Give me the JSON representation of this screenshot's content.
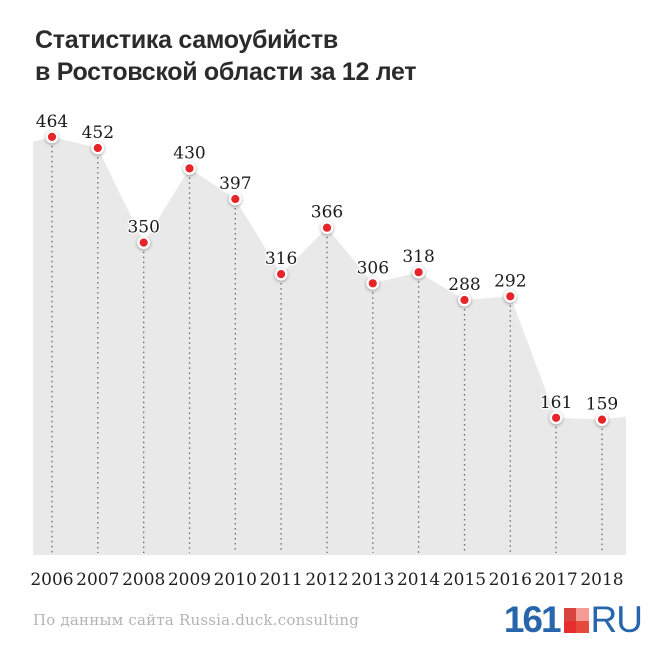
{
  "title": {
    "line1": "Статистика самоубийств",
    "line2": "в Ростовской области за 12 лет"
  },
  "chart_data": {
    "type": "area",
    "title": "Статистика самоубийств в Ростовской области за 12 лет",
    "categories": [
      "2006",
      "2007",
      "2008",
      "2009",
      "2010",
      "2011",
      "2012",
      "2013",
      "2014",
      "2015",
      "2016",
      "2017",
      "2018"
    ],
    "values": [
      464,
      452,
      350,
      430,
      397,
      316,
      366,
      306,
      318,
      288,
      292,
      161,
      159
    ],
    "xlabel": "",
    "ylabel": "",
    "ylim": [
      0,
      500
    ],
    "grid": false,
    "legend": false,
    "point_labels_shown": true,
    "colors": {
      "area_fill": "#e9e9e9",
      "dot_fill": "#e8242b",
      "dot_ring": "#ffffff",
      "value_label": "#1b1b1b",
      "year_label": "#1f1f1f",
      "dotted_line": "#6a6a6a"
    }
  },
  "footer": {
    "source": "По данным сайта Russia.duck.consulting",
    "logo": {
      "number": "161",
      "suffix": "RU",
      "blue": "#2766ad",
      "square": {
        "tl": "#d84540",
        "tr": "#f59b94",
        "bl": "#e62e2e",
        "br": "#e64a3c"
      }
    }
  },
  "colors": {
    "background": "#ffffff",
    "title": "#2b2b2b",
    "source_text": "#b4b4b4"
  }
}
